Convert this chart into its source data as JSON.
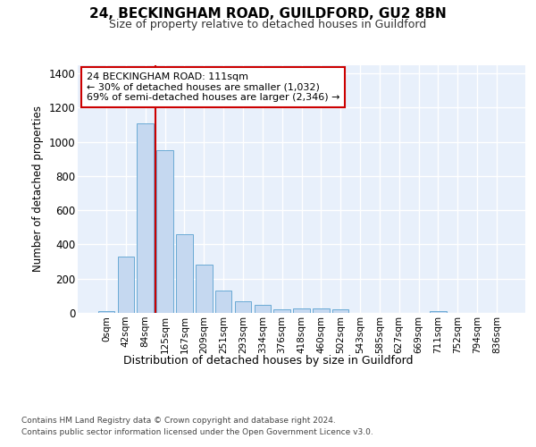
{
  "title": "24, BECKINGHAM ROAD, GUILDFORD, GU2 8BN",
  "subtitle": "Size of property relative to detached houses in Guildford",
  "xlabel": "Distribution of detached houses by size in Guildford",
  "ylabel": "Number of detached properties",
  "bar_labels": [
    "0sqm",
    "42sqm",
    "84sqm",
    "125sqm",
    "167sqm",
    "209sqm",
    "251sqm",
    "293sqm",
    "334sqm",
    "376sqm",
    "418sqm",
    "460sqm",
    "502sqm",
    "543sqm",
    "585sqm",
    "627sqm",
    "669sqm",
    "711sqm",
    "752sqm",
    "794sqm",
    "836sqm"
  ],
  "bar_values": [
    10,
    330,
    1110,
    950,
    460,
    280,
    130,
    70,
    45,
    22,
    25,
    25,
    20,
    0,
    0,
    0,
    0,
    10,
    0,
    0,
    0
  ],
  "bar_color": "#c5d8f0",
  "bar_edge_color": "#6aaad4",
  "background_color": "#e8f0fb",
  "grid_color": "#ffffff",
  "vline_x": 2.5,
  "vline_color": "#cc0000",
  "annotation_text": "24 BECKINGHAM ROAD: 111sqm\n← 30% of detached houses are smaller (1,032)\n69% of semi-detached houses are larger (2,346) →",
  "annotation_box_edgecolor": "#cc0000",
  "ylim": [
    0,
    1450
  ],
  "yticks": [
    0,
    200,
    400,
    600,
    800,
    1000,
    1200,
    1400
  ],
  "footer_line1": "Contains HM Land Registry data © Crown copyright and database right 2024.",
  "footer_line2": "Contains public sector information licensed under the Open Government Licence v3.0."
}
